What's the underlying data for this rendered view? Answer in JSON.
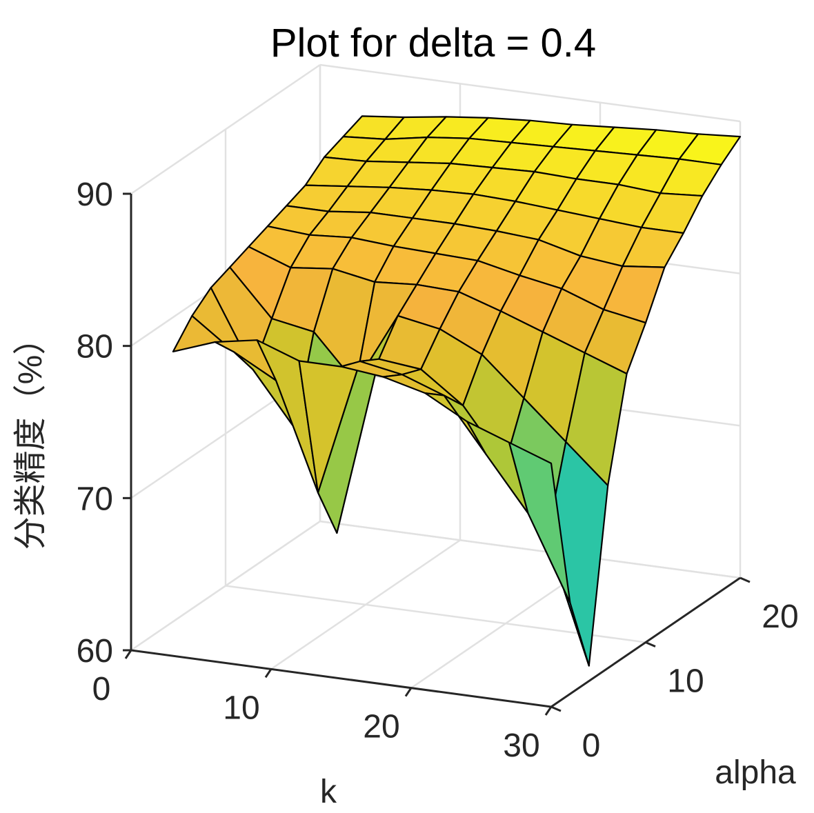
{
  "chart_data": {
    "type": "surface",
    "title": "Plot for delta = 0.4",
    "xlabel": "k",
    "ylabel": "alpha",
    "zlabel": "分类精度（%）",
    "xlim": [
      0,
      30
    ],
    "ylim": [
      0,
      20
    ],
    "zlim": [
      60,
      90
    ],
    "xticks": [
      "0",
      "10",
      "20",
      "30"
    ],
    "yticks": [
      "0",
      "10",
      "20"
    ],
    "zticks": [
      "60",
      "70",
      "80",
      "90"
    ],
    "grid": true,
    "colormap": [
      "#3d5afe",
      "#1aa7e0",
      "#22c2b0",
      "#3ecb8e",
      "#a8c83a",
      "#dcc22a",
      "#f7b23e",
      "#f6d330",
      "#f9fa17"
    ],
    "edge_color": "#000000",
    "k": [
      3,
      6,
      9,
      12,
      15,
      18,
      21,
      24,
      27,
      30
    ],
    "alpha": [
      0,
      2,
      4,
      6,
      8,
      10,
      12,
      14,
      16,
      18,
      20
    ],
    "z": [
      [
        80,
        81.5,
        82.5,
        83,
        83.5,
        84,
        84.5,
        85,
        86,
        86.5,
        87
      ],
      [
        81,
        79.5,
        77.5,
        80,
        82.5,
        83.8,
        84.5,
        85.3,
        86.1,
        86.7,
        87.3
      ],
      [
        81.5,
        78,
        74,
        79.5,
        82.8,
        84,
        84.8,
        85.6,
        86.4,
        87.2,
        87.7
      ],
      [
        80.5,
        71,
        67.5,
        76.5,
        82.3,
        83.8,
        84.8,
        85.8,
        86.7,
        87.5,
        88
      ],
      [
        80.5,
        80,
        79.3,
        81.3,
        82.5,
        83.7,
        84.8,
        85.9,
        86.8,
        87.6,
        88.2
      ],
      [
        80.2,
        79.5,
        79,
        80.8,
        82.4,
        83.6,
        84.7,
        85.8,
        86.9,
        87.7,
        88.3
      ],
      [
        79.5,
        78.5,
        77,
        79.5,
        81.5,
        83,
        84.5,
        85.6,
        86.8,
        87.8,
        88.5
      ],
      [
        78,
        75,
        73.5,
        77,
        80.5,
        82.5,
        83.8,
        85.4,
        86.8,
        87.9,
        88.7
      ],
      [
        77,
        71.5,
        69,
        74.5,
        79.5,
        81.5,
        83.5,
        85.2,
        86.6,
        88,
        88.8
      ],
      [
        76,
        66,
        61,
        72,
        78.5,
        81,
        83.8,
        85.2,
        86.8,
        88,
        89
      ]
    ]
  }
}
